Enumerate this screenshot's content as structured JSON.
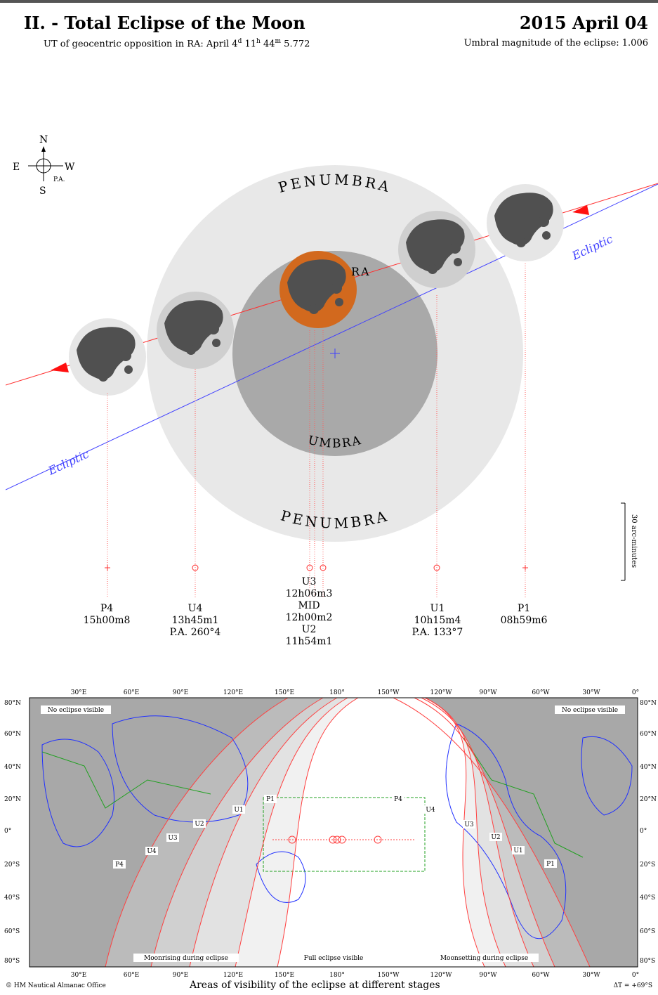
{
  "header": {
    "title": "II. - Total Eclipse of the Moon",
    "date": "2015 April 04",
    "opposition_prefix": "UT of geocentric opposition in RA: April 4",
    "opposition_d": "d",
    "opposition_mid": " 11",
    "opposition_h": "h",
    "opposition_min": " 44",
    "opposition_m": "m",
    "opposition_sec": " 5.772",
    "magnitude": "Umbral magnitude of the eclipse: 1.006"
  },
  "compass": {
    "n": "N",
    "s": "S",
    "e": "E",
    "w": "W",
    "pa": "P.A."
  },
  "labels": {
    "penumbra_top": "PENUMBRA",
    "penumbra_bottom": "PENUMBRA",
    "umbra": "UMBRA",
    "umbra_hidden": "RA",
    "ecliptic_right": "Ecliptic",
    "ecliptic_left": "Ecliptic",
    "scale": "30 arc-minutes"
  },
  "events": [
    {
      "name": "P4",
      "time": "15h00m8",
      "pa": ""
    },
    {
      "name": "U4",
      "time": "13h45m1",
      "pa": "P.A. 260°4"
    },
    {
      "name": "U3",
      "time": "12h06m3",
      "pa": ""
    },
    {
      "name": "MID",
      "time": "12h00m2",
      "pa": ""
    },
    {
      "name": "U2",
      "time": "11h54m1",
      "pa": ""
    },
    {
      "name": "U1",
      "time": "10h15m4",
      "pa": "P.A. 133°7"
    },
    {
      "name": "P1",
      "time": "08h59m6",
      "pa": ""
    }
  ],
  "map": {
    "top_lon": [
      "30°E",
      "60°E",
      "90°E",
      "120°E",
      "150°E",
      "180°",
      "150°W",
      "120°W",
      "90°W",
      "60°W",
      "30°W",
      "0°"
    ],
    "bottom_lon": [
      "30°E",
      "60°E",
      "90°E",
      "120°E",
      "150°E",
      "180°",
      "150°W",
      "120°W",
      "90°W",
      "60°W",
      "30°W",
      "0°"
    ],
    "lat": [
      "80°N",
      "60°N",
      "40°N",
      "20°N",
      "0°",
      "20°S",
      "40°S",
      "60°S",
      "80°S"
    ],
    "no_eclipse_left": "No eclipse visible",
    "no_eclipse_right": "No eclipse visible",
    "moonrise": "Moonrising during eclipse",
    "full": "Full eclipse visible",
    "moonset": "Moonsetting during eclipse",
    "zone_labels": [
      "P1",
      "U1",
      "U2",
      "U3",
      "U4",
      "P4",
      "P4",
      "U4",
      "U3",
      "U2",
      "U1",
      "P1"
    ],
    "caption": "Areas of visibility of the eclipse at different stages",
    "credit": "© HM Nautical Almanac Office",
    "delta_t": "ΔT = +69°S"
  },
  "colors": {
    "penumbra": "#e8e8e8",
    "umbra": "#a9a9a9",
    "moon_eclipsed": "#d2691e",
    "moon_light": "#e6e6e6",
    "ecliptic": "#4040ff",
    "moon_path": "#ff3030"
  }
}
